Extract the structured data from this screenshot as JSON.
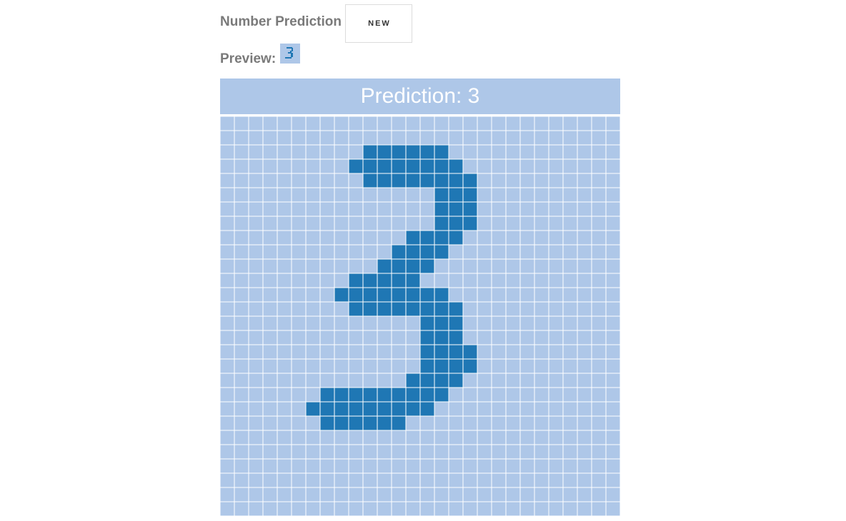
{
  "header": {
    "title": "Number Prediction",
    "new_button_label": "NEW"
  },
  "preview": {
    "label": "Preview:",
    "image_name": "digit-preview-thumbnail"
  },
  "prediction": {
    "text": "Prediction: 3",
    "digit": 3
  },
  "grid": {
    "rows": 28,
    "cols": 28,
    "colors": {
      "empty": "#aec7e8",
      "filled": "#1f77b4",
      "line": "#ffffff"
    },
    "filled_cells": [
      [
        2,
        10
      ],
      [
        2,
        11
      ],
      [
        2,
        12
      ],
      [
        2,
        13
      ],
      [
        2,
        14
      ],
      [
        2,
        15
      ],
      [
        3,
        9
      ],
      [
        3,
        10
      ],
      [
        3,
        11
      ],
      [
        3,
        12
      ],
      [
        3,
        13
      ],
      [
        3,
        14
      ],
      [
        3,
        15
      ],
      [
        3,
        16
      ],
      [
        4,
        10
      ],
      [
        4,
        11
      ],
      [
        4,
        12
      ],
      [
        4,
        13
      ],
      [
        4,
        14
      ],
      [
        4,
        15
      ],
      [
        4,
        16
      ],
      [
        4,
        17
      ],
      [
        5,
        15
      ],
      [
        5,
        16
      ],
      [
        5,
        17
      ],
      [
        6,
        15
      ],
      [
        6,
        16
      ],
      [
        6,
        17
      ],
      [
        7,
        15
      ],
      [
        7,
        16
      ],
      [
        7,
        17
      ],
      [
        8,
        13
      ],
      [
        8,
        14
      ],
      [
        8,
        15
      ],
      [
        8,
        16
      ],
      [
        9,
        12
      ],
      [
        9,
        13
      ],
      [
        9,
        14
      ],
      [
        9,
        15
      ],
      [
        10,
        11
      ],
      [
        10,
        12
      ],
      [
        10,
        13
      ],
      [
        10,
        14
      ],
      [
        11,
        9
      ],
      [
        11,
        10
      ],
      [
        11,
        11
      ],
      [
        11,
        12
      ],
      [
        11,
        13
      ],
      [
        12,
        8
      ],
      [
        12,
        9
      ],
      [
        12,
        10
      ],
      [
        12,
        11
      ],
      [
        12,
        12
      ],
      [
        12,
        13
      ],
      [
        12,
        14
      ],
      [
        12,
        15
      ],
      [
        13,
        9
      ],
      [
        13,
        10
      ],
      [
        13,
        11
      ],
      [
        13,
        12
      ],
      [
        13,
        13
      ],
      [
        13,
        14
      ],
      [
        13,
        15
      ],
      [
        13,
        16
      ],
      [
        14,
        14
      ],
      [
        14,
        15
      ],
      [
        14,
        16
      ],
      [
        15,
        14
      ],
      [
        15,
        15
      ],
      [
        15,
        16
      ],
      [
        16,
        14
      ],
      [
        16,
        15
      ],
      [
        16,
        16
      ],
      [
        16,
        17
      ],
      [
        17,
        14
      ],
      [
        17,
        15
      ],
      [
        17,
        16
      ],
      [
        17,
        17
      ],
      [
        18,
        13
      ],
      [
        18,
        14
      ],
      [
        18,
        15
      ],
      [
        18,
        16
      ],
      [
        19,
        7
      ],
      [
        19,
        8
      ],
      [
        19,
        9
      ],
      [
        19,
        10
      ],
      [
        19,
        11
      ],
      [
        19,
        12
      ],
      [
        19,
        13
      ],
      [
        19,
        14
      ],
      [
        19,
        15
      ],
      [
        20,
        6
      ],
      [
        20,
        7
      ],
      [
        20,
        8
      ],
      [
        20,
        9
      ],
      [
        20,
        10
      ],
      [
        20,
        11
      ],
      [
        20,
        12
      ],
      [
        20,
        13
      ],
      [
        20,
        14
      ],
      [
        21,
        7
      ],
      [
        21,
        8
      ],
      [
        21,
        9
      ],
      [
        21,
        10
      ],
      [
        21,
        11
      ],
      [
        21,
        12
      ]
    ]
  }
}
